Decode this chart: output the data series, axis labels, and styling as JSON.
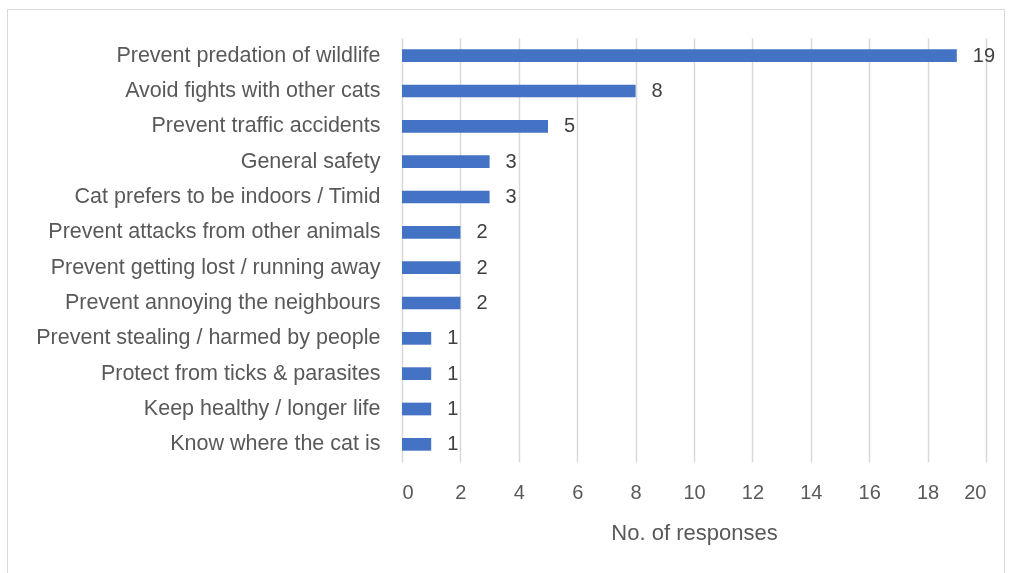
{
  "chart_data": {
    "type": "bar",
    "orientation": "horizontal",
    "xlabel": "No. of responses",
    "categories": [
      "Prevent predation of wildlife",
      "Avoid fights with other cats",
      "Prevent traffic accidents",
      "General safety",
      "Cat prefers to be indoors / Timid",
      "Prevent attacks from other animals",
      "Prevent getting lost / running away",
      "Prevent annoying the neighbours",
      "Prevent stealing / harmed by people",
      "Protect from ticks & parasites",
      "Keep healthy / longer life",
      "Know where the cat is"
    ],
    "values": [
      19,
      8,
      5,
      3,
      3,
      2,
      2,
      2,
      1,
      1,
      1,
      1
    ],
    "color": "#4472c4",
    "xlim": [
      0,
      20
    ],
    "xticks": [
      0,
      2,
      4,
      6,
      8,
      10,
      12,
      14,
      16,
      18,
      20
    ],
    "grid": "x",
    "data_labels": true
  }
}
